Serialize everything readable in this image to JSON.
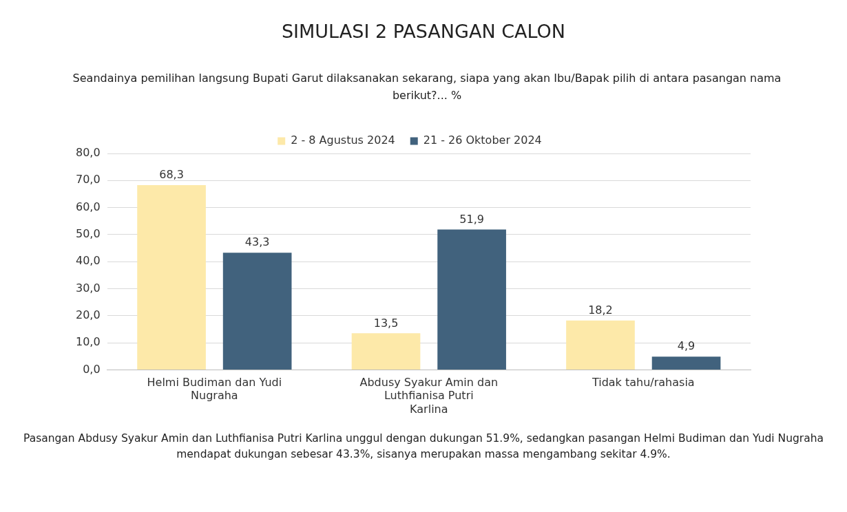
{
  "chart_data": {
    "type": "bar",
    "title": "SIMULASI 2 PASANGAN CALON",
    "subtitle": "Seandainya pemilihan langsung Bupati Garut dilaksanakan sekarang, siapa yang akan Ibu/Bapak pilih di antara pasangan nama berikut?... %",
    "categories": [
      "Helmi Budiman dan Yudi Nugraha",
      "Abdusy Syakur Amin dan Luthfianisa Putri Karlina",
      "Tidak tahu/rahasia"
    ],
    "series": [
      {
        "name": "2 - 8 Agustus 2024",
        "color": "#fde9a9",
        "values": [
          68.3,
          13.5,
          18.2
        ],
        "value_labels": [
          "68,3",
          "13,5",
          "18,2"
        ]
      },
      {
        "name": "21 - 26 Oktober 2024",
        "color": "#41627d",
        "values": [
          43.3,
          51.9,
          4.9
        ],
        "value_labels": [
          "43,3",
          "51,9",
          "4,9"
        ]
      }
    ],
    "ylim": [
      0,
      80
    ],
    "yticks": [
      {
        "value": 0,
        "label": "0,0"
      },
      {
        "value": 10,
        "label": "10,0"
      },
      {
        "value": 20,
        "label": "20,0"
      },
      {
        "value": 30,
        "label": "30,0"
      },
      {
        "value": 40,
        "label": "40,0"
      },
      {
        "value": 50,
        "label": "50,0"
      },
      {
        "value": 60,
        "label": "60,0"
      },
      {
        "value": 70,
        "label": "70,0"
      },
      {
        "value": 80,
        "label": "80,0"
      }
    ],
    "grid": "y",
    "legend": "top",
    "annotations": [
      "Pasangan Abdusy Syakur Amin dan Luthfianisa Putri Karlina unggul dengan dukungan 51.9%, sedangkan pasangan Helmi Budiman dan Yudi Nugraha mendapat dukungan sebesar 43.3%, sisanya merupakan massa mengambang sekitar 4.9%."
    ]
  }
}
